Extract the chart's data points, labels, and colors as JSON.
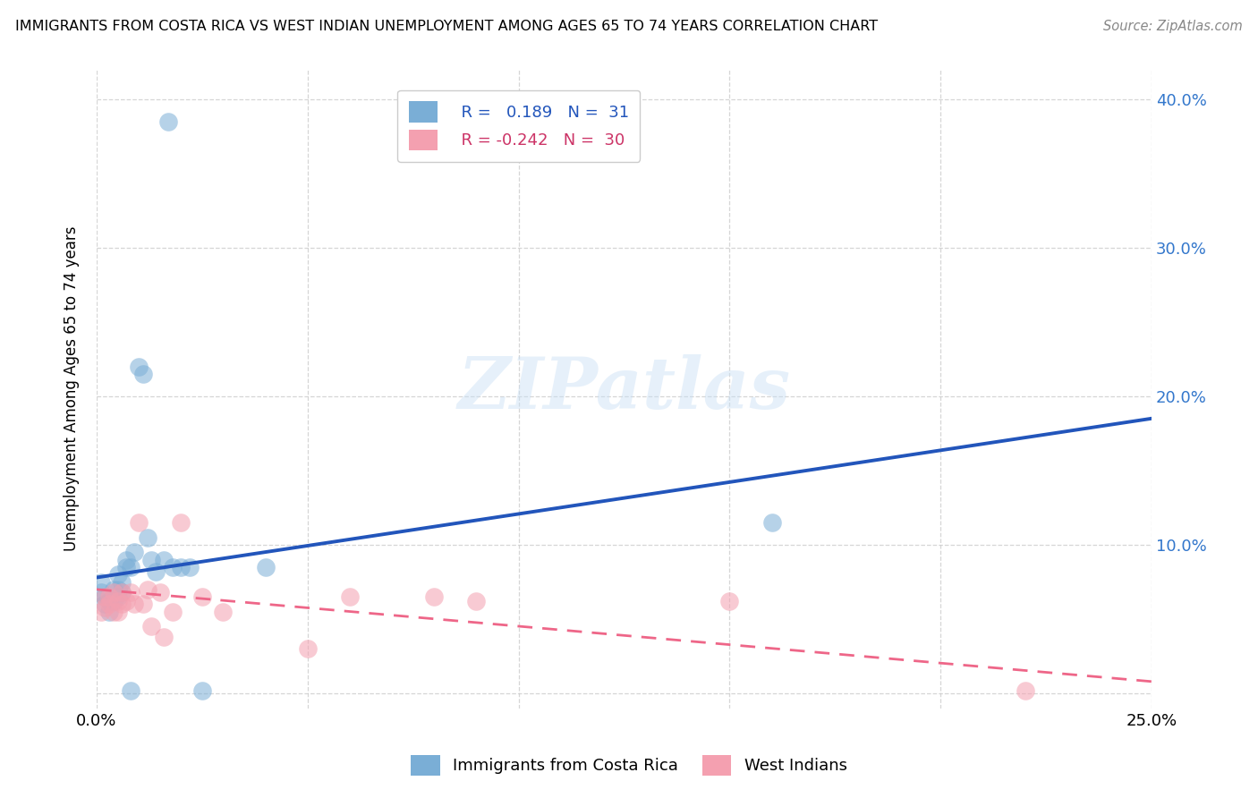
{
  "title": "IMMIGRANTS FROM COSTA RICA VS WEST INDIAN UNEMPLOYMENT AMONG AGES 65 TO 74 YEARS CORRELATION CHART",
  "source": "Source: ZipAtlas.com",
  "ylabel": "Unemployment Among Ages 65 to 74 years",
  "xlim": [
    0.0,
    0.25
  ],
  "ylim": [
    -0.01,
    0.42
  ],
  "xticks": [
    0.0,
    0.05,
    0.1,
    0.15,
    0.2,
    0.25
  ],
  "yticks": [
    0.0,
    0.1,
    0.2,
    0.3,
    0.4
  ],
  "xtick_labels": [
    "0.0%",
    "",
    "",
    "",
    "",
    "25.0%"
  ],
  "ytick_labels_right": [
    "",
    "10.0%",
    "20.0%",
    "30.0%",
    "40.0%"
  ],
  "legend_label1": "Immigrants from Costa Rica",
  "legend_label2": "West Indians",
  "blue_scatter": "#7aaed6",
  "pink_scatter": "#f4a0b0",
  "line_blue": "#2255bb",
  "line_pink": "#ee6688",
  "blue_line_x0": 0.0,
  "blue_line_y0": 0.078,
  "blue_line_x1": 0.25,
  "blue_line_y1": 0.185,
  "pink_line_x0": 0.0,
  "pink_line_y0": 0.07,
  "pink_line_x1": 0.25,
  "pink_line_y1": 0.008,
  "costa_rica_x": [
    0.001,
    0.001,
    0.002,
    0.002,
    0.003,
    0.003,
    0.004,
    0.004,
    0.005,
    0.005,
    0.005,
    0.006,
    0.006,
    0.007,
    0.007,
    0.008,
    0.008,
    0.009,
    0.01,
    0.011,
    0.012,
    0.013,
    0.014,
    0.016,
    0.018,
    0.02,
    0.022,
    0.025,
    0.04,
    0.16,
    0.017
  ],
  "costa_rica_y": [
    0.068,
    0.075,
    0.065,
    0.06,
    0.062,
    0.055,
    0.07,
    0.062,
    0.08,
    0.07,
    0.065,
    0.075,
    0.068,
    0.085,
    0.09,
    0.085,
    0.002,
    0.095,
    0.22,
    0.215,
    0.105,
    0.09,
    0.082,
    0.09,
    0.085,
    0.085,
    0.085,
    0.002,
    0.085,
    0.115,
    0.385
  ],
  "west_indian_x": [
    0.001,
    0.002,
    0.002,
    0.003,
    0.003,
    0.004,
    0.004,
    0.005,
    0.005,
    0.006,
    0.006,
    0.007,
    0.008,
    0.009,
    0.01,
    0.011,
    0.012,
    0.013,
    0.015,
    0.016,
    0.018,
    0.02,
    0.025,
    0.03,
    0.05,
    0.06,
    0.08,
    0.09,
    0.15,
    0.22
  ],
  "west_indian_y": [
    0.055,
    0.065,
    0.058,
    0.065,
    0.06,
    0.068,
    0.055,
    0.062,
    0.055,
    0.068,
    0.06,
    0.062,
    0.068,
    0.06,
    0.115,
    0.06,
    0.07,
    0.045,
    0.068,
    0.038,
    0.055,
    0.115,
    0.065,
    0.055,
    0.03,
    0.065,
    0.065,
    0.062,
    0.062,
    0.002
  ]
}
